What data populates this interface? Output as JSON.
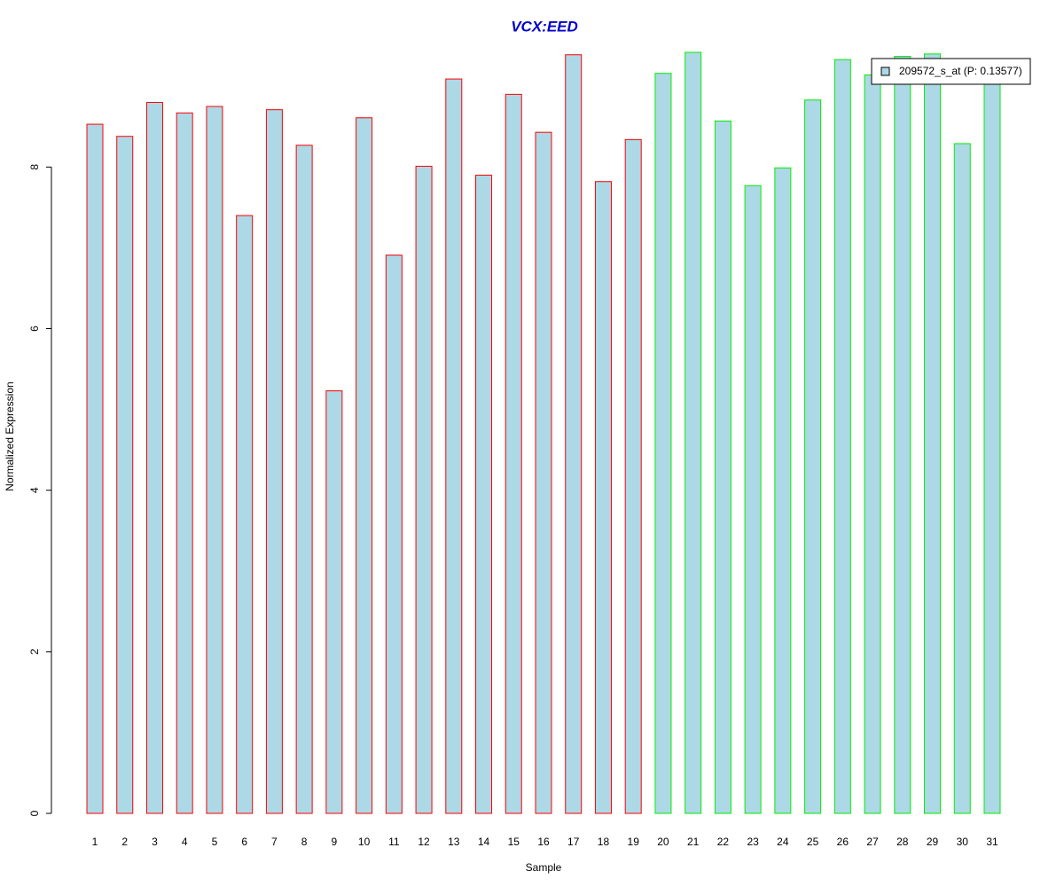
{
  "chart_data": {
    "type": "bar",
    "title": "VCX:EED",
    "x_label": "Sample",
    "y_label": "Normalized Expression",
    "categories": [
      "1",
      "2",
      "3",
      "4",
      "5",
      "6",
      "7",
      "8",
      "9",
      "10",
      "11",
      "12",
      "13",
      "14",
      "15",
      "16",
      "17",
      "18",
      "19",
      "20",
      "21",
      "22",
      "23",
      "24",
      "25",
      "26",
      "27",
      "28",
      "29",
      "30",
      "31"
    ],
    "series": [
      {
        "name": "209572_s_at (P: 0.13577)",
        "color": "#add8e6",
        "values": [
          8.53,
          8.38,
          8.8,
          8.67,
          8.75,
          7.4,
          8.71,
          8.27,
          5.23,
          8.61,
          6.91,
          8.01,
          9.09,
          7.9,
          8.9,
          8.43,
          9.39,
          7.82,
          8.34,
          9.16,
          9.42,
          8.57,
          7.77,
          7.99,
          8.83,
          9.33,
          9.14,
          9.37,
          9.4,
          8.29,
          9.13
        ]
      }
    ],
    "border_colors": [
      "#ff0000",
      "#ff0000",
      "#ff0000",
      "#ff0000",
      "#ff0000",
      "#ff0000",
      "#ff0000",
      "#ff0000",
      "#ff0000",
      "#ff0000",
      "#ff0000",
      "#ff0000",
      "#ff0000",
      "#ff0000",
      "#ff0000",
      "#ff0000",
      "#ff0000",
      "#ff0000",
      "#ff0000",
      "#00ee00",
      "#00ee00",
      "#00ee00",
      "#00ee00",
      "#00ee00",
      "#00ee00",
      "#00ee00",
      "#00ee00",
      "#00ee00",
      "#00ee00",
      "#00ee00",
      "#00ee00"
    ],
    "ylim": [
      0,
      9.42
    ],
    "yticks": [
      0,
      2,
      4,
      6,
      8
    ],
    "legend": "top-right"
  }
}
